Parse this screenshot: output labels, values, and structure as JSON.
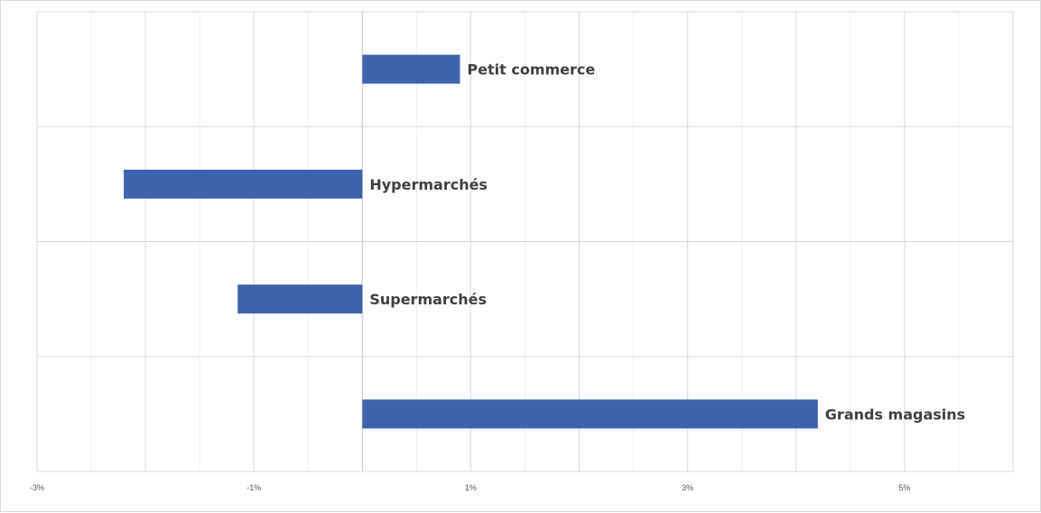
{
  "chart_data": {
    "type": "bar",
    "orientation": "horizontal",
    "categories": [
      "Petit commerce",
      "Hypermarchés",
      "Supermarchés",
      "Grands magasins"
    ],
    "values": [
      0.9,
      -2.2,
      -1.15,
      4.2
    ],
    "value_unit": "%",
    "xlim": [
      -3,
      6
    ],
    "x_ticks": [
      "-3%",
      "-1%",
      "1%",
      "3%",
      "5%"
    ],
    "title": "",
    "xlabel": "",
    "ylabel": "",
    "grid": {
      "major": true,
      "minor": true
    },
    "legend": "none",
    "bar_color": "#3C63AC",
    "data_labels": "category names beside bars"
  }
}
